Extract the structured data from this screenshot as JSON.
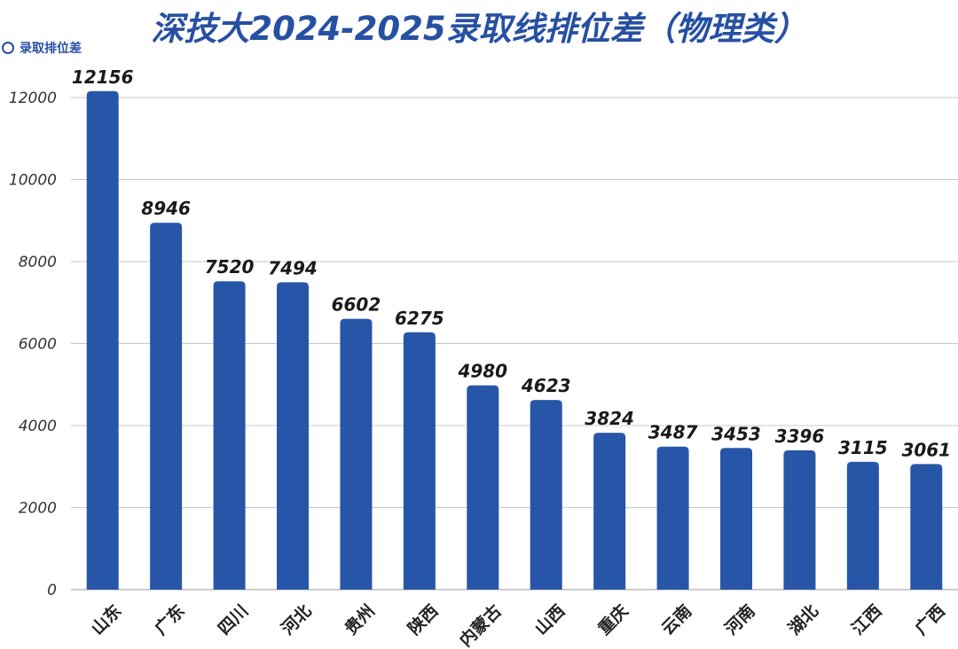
{
  "title": "深技大2024-2025录取线排位差（物理类）",
  "legend": {
    "label": "录取排位差",
    "marker_icon": "circle-outline-icon"
  },
  "colors": {
    "accent": "#2650a3",
    "bar": "#2756a8",
    "grid": "#c8c8c8",
    "baseline": "#999999"
  },
  "chart_data": {
    "type": "bar",
    "title": "深技大2024-2025录取线排位差（物理类）",
    "xlabel": "",
    "ylabel": "",
    "ylim": [
      0,
      12000
    ],
    "yticks": [
      0,
      2000,
      4000,
      6000,
      8000,
      10000,
      12000
    ],
    "grid": true,
    "legend_position": "top-left",
    "categories": [
      "山东",
      "广东",
      "四川",
      "河北",
      "贵州",
      "陕西",
      "内蒙古",
      "山西",
      "重庆",
      "云南",
      "河南",
      "湖北",
      "江西",
      "广西"
    ],
    "series": [
      {
        "name": "录取排位差",
        "values": [
          12156,
          8946,
          7520,
          7494,
          6602,
          6275,
          4980,
          4623,
          3824,
          3487,
          3453,
          3396,
          3115,
          3061
        ]
      }
    ]
  }
}
